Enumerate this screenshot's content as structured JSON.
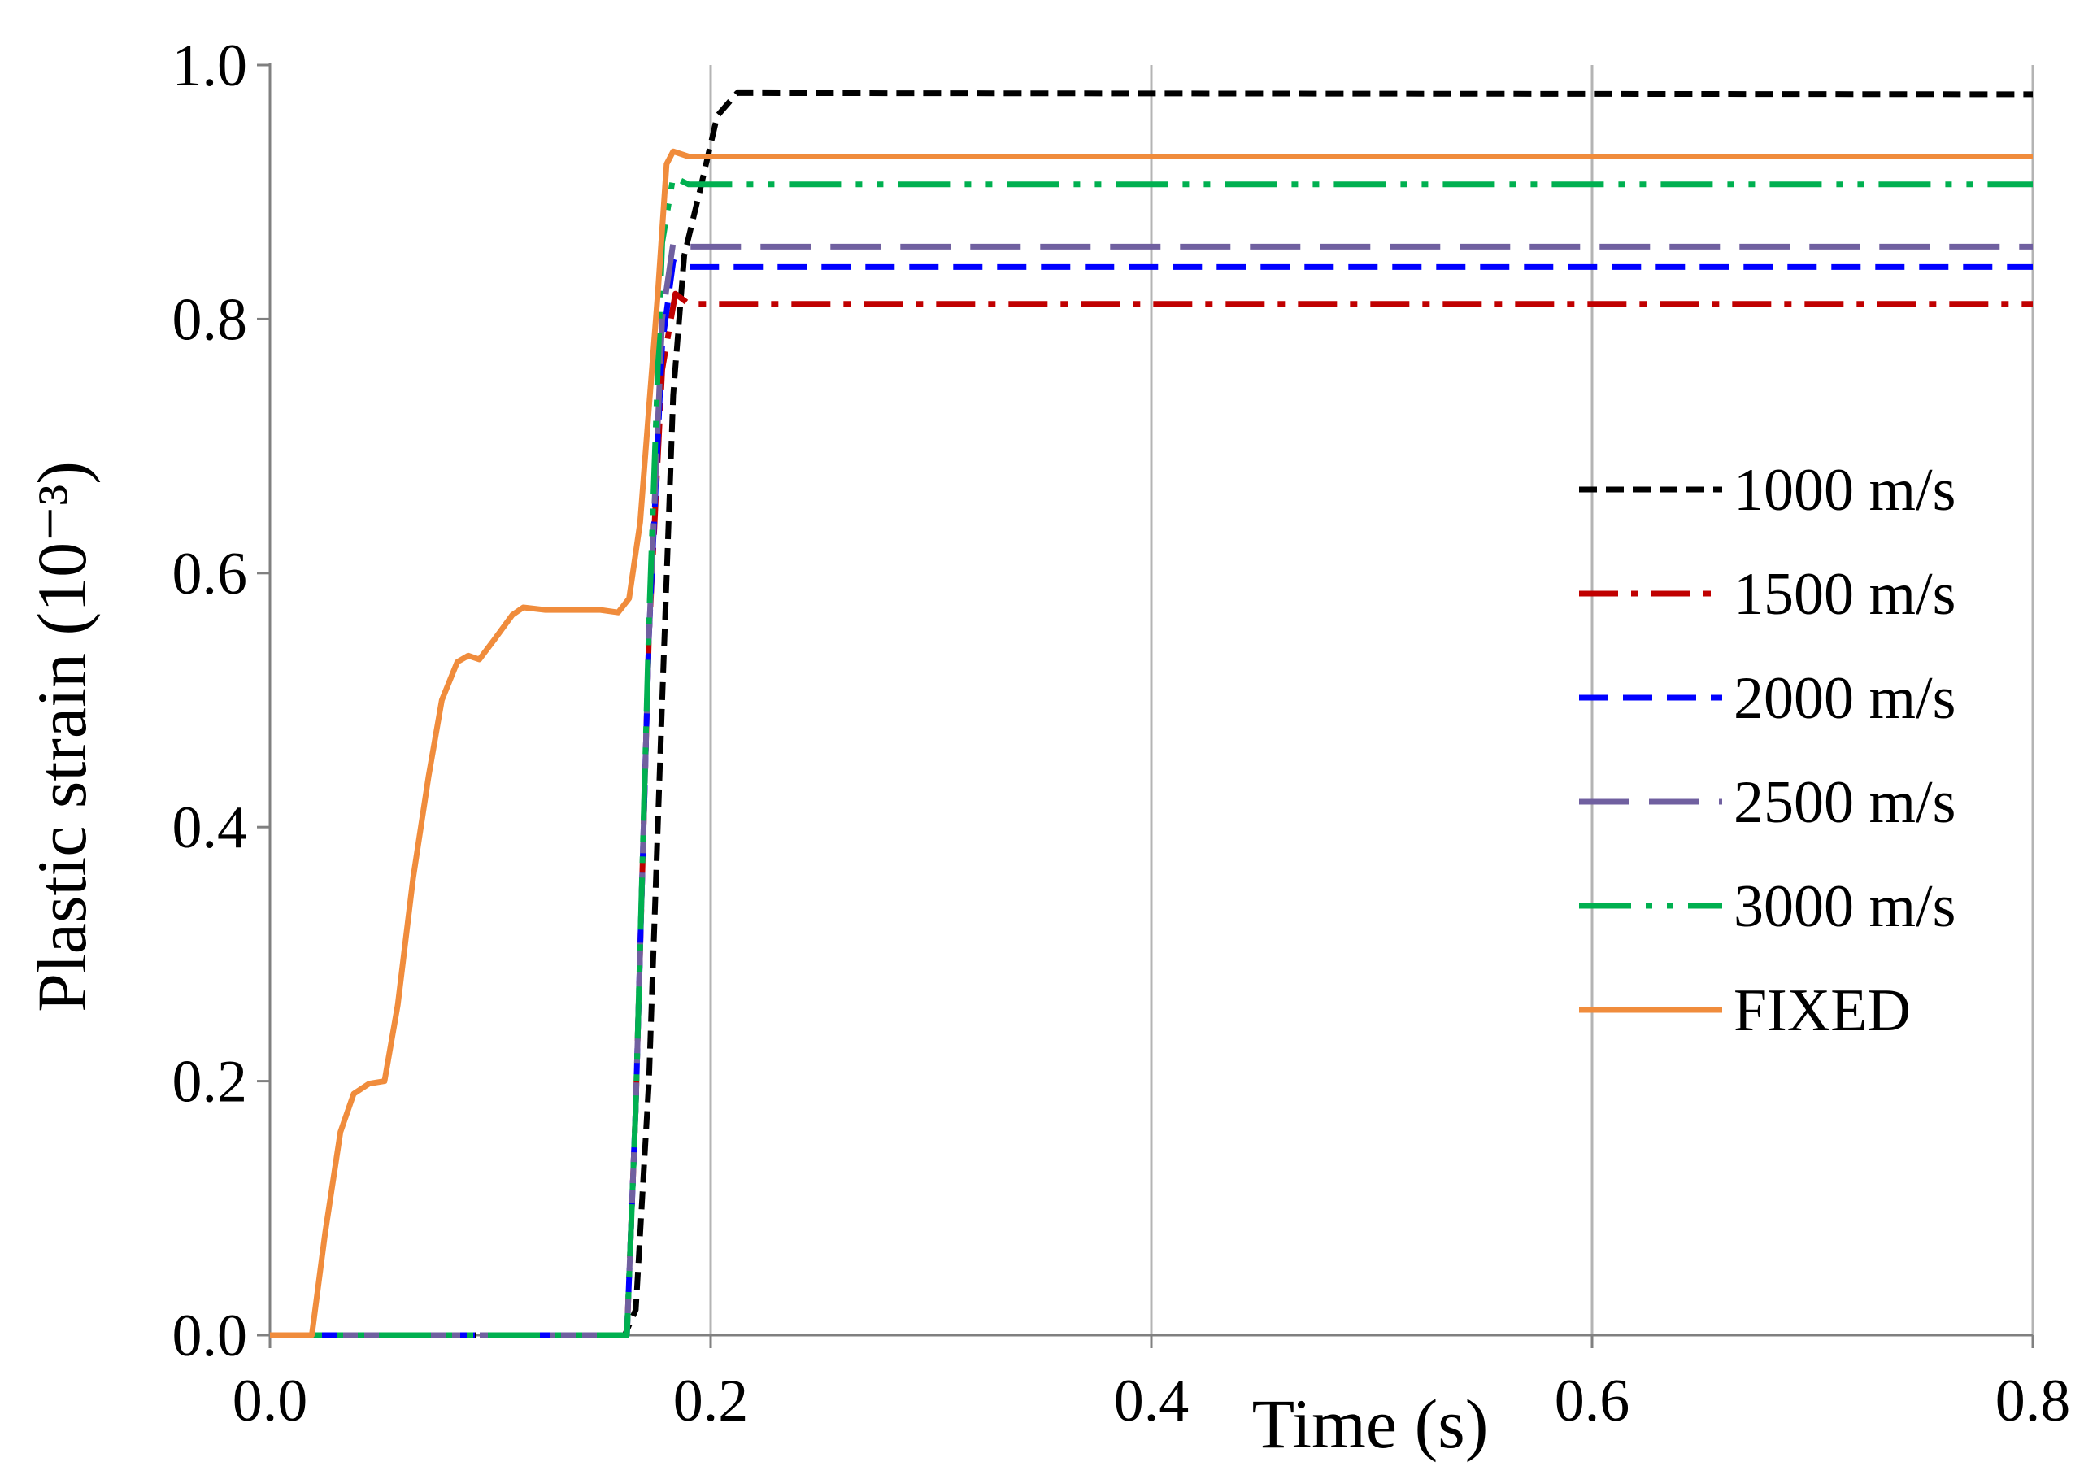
{
  "chart_data": {
    "type": "line",
    "title": "",
    "xlabel": "Time (s)",
    "ylabel": "Plastic strain (10⁻³)",
    "xlim": [
      0,
      0.8
    ],
    "ylim": [
      0,
      1.0
    ],
    "xticks": [
      0.0,
      0.2,
      0.4,
      0.6,
      0.8
    ],
    "yticks": [
      0.0,
      0.2,
      0.4,
      0.6,
      0.8,
      1.0
    ],
    "xtick_labels": [
      "0.0",
      "0.2",
      "0.4",
      "0.6",
      "0.8"
    ],
    "ytick_labels": [
      "0.0",
      "0.2",
      "0.4",
      "0.6",
      "0.8",
      "1.0"
    ],
    "grid": "vertical-major",
    "legend_position": "right-middle",
    "series": [
      {
        "name": "1000 m/s",
        "color": "#000000",
        "dash": "short-dash",
        "points": [
          [
            0,
            0
          ],
          [
            0.161,
            0
          ],
          [
            0.166,
            0.02
          ],
          [
            0.172,
            0.2
          ],
          [
            0.178,
            0.5
          ],
          [
            0.183,
            0.74
          ],
          [
            0.188,
            0.85
          ],
          [
            0.195,
            0.9
          ],
          [
            0.203,
            0.96
          ],
          [
            0.212,
            0.978
          ],
          [
            0.8,
            0.977
          ]
        ]
      },
      {
        "name": "1500 m/s",
        "color": "#C00000",
        "dash": "dash-dot",
        "points": [
          [
            0,
            0
          ],
          [
            0.162,
            0
          ],
          [
            0.166,
            0.18
          ],
          [
            0.172,
            0.55
          ],
          [
            0.178,
            0.76
          ],
          [
            0.184,
            0.82
          ],
          [
            0.19,
            0.812
          ],
          [
            0.8,
            0.812
          ]
        ]
      },
      {
        "name": "2000 m/s",
        "color": "#0000FF",
        "dash": "dash",
        "points": [
          [
            0,
            0
          ],
          [
            0.162,
            0
          ],
          [
            0.166,
            0.18
          ],
          [
            0.172,
            0.55
          ],
          [
            0.178,
            0.78
          ],
          [
            0.183,
            0.845
          ],
          [
            0.19,
            0.841
          ],
          [
            0.8,
            0.841
          ]
        ]
      },
      {
        "name": "2500 m/s",
        "color": "#7060A0",
        "dash": "long-dash",
        "points": [
          [
            0,
            0
          ],
          [
            0.162,
            0
          ],
          [
            0.166,
            0.18
          ],
          [
            0.172,
            0.55
          ],
          [
            0.178,
            0.8
          ],
          [
            0.183,
            0.86
          ],
          [
            0.19,
            0.857
          ],
          [
            0.8,
            0.857
          ]
        ]
      },
      {
        "name": "3000 m/s",
        "color": "#00B050",
        "dash": "dash-dot-dot",
        "points": [
          [
            0,
            0
          ],
          [
            0.162,
            0
          ],
          [
            0.166,
            0.18
          ],
          [
            0.172,
            0.56
          ],
          [
            0.178,
            0.86
          ],
          [
            0.183,
            0.912
          ],
          [
            0.19,
            0.906
          ],
          [
            0.8,
            0.906
          ]
        ]
      },
      {
        "name": "FIXED",
        "color": "#F08C3C",
        "dash": "solid",
        "points": [
          [
            0,
            0
          ],
          [
            0.019,
            0
          ],
          [
            0.025,
            0.08
          ],
          [
            0.032,
            0.16
          ],
          [
            0.038,
            0.19
          ],
          [
            0.045,
            0.198
          ],
          [
            0.052,
            0.2
          ],
          [
            0.058,
            0.26
          ],
          [
            0.065,
            0.36
          ],
          [
            0.072,
            0.44
          ],
          [
            0.078,
            0.5
          ],
          [
            0.085,
            0.53
          ],
          [
            0.09,
            0.535
          ],
          [
            0.095,
            0.532
          ],
          [
            0.102,
            0.548
          ],
          [
            0.11,
            0.567
          ],
          [
            0.115,
            0.573
          ],
          [
            0.125,
            0.571
          ],
          [
            0.15,
            0.571
          ],
          [
            0.158,
            0.569
          ],
          [
            0.163,
            0.58
          ],
          [
            0.168,
            0.64
          ],
          [
            0.172,
            0.73
          ],
          [
            0.176,
            0.82
          ],
          [
            0.18,
            0.922
          ],
          [
            0.183,
            0.932
          ],
          [
            0.19,
            0.928
          ],
          [
            0.8,
            0.928
          ]
        ]
      }
    ]
  }
}
